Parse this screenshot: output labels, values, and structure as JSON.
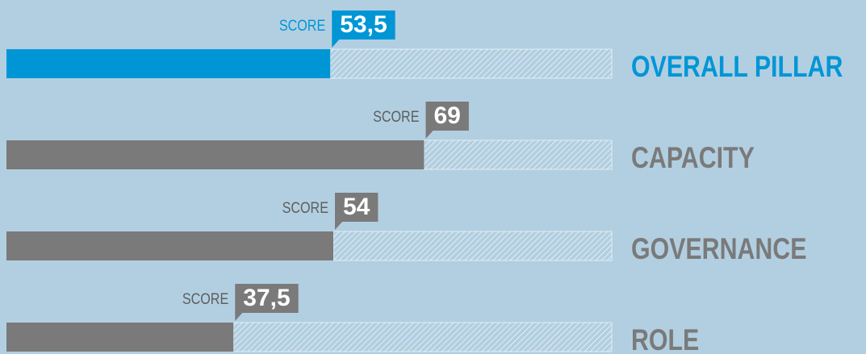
{
  "chart_data": {
    "type": "bar",
    "orientation": "horizontal",
    "score_label": "SCORE",
    "categories": [
      "OVERALL PILLAR",
      "CAPACITY",
      "GOVERNANCE",
      "ROLE"
    ],
    "values": [
      53.5,
      69,
      54,
      37.5
    ],
    "value_labels": [
      "53,5",
      "69",
      "54",
      "37,5"
    ],
    "colors": [
      "#0096d6",
      "#7a7a7a",
      "#7a7a7a",
      "#7a7a7a"
    ],
    "xlim": [
      0,
      100
    ]
  }
}
